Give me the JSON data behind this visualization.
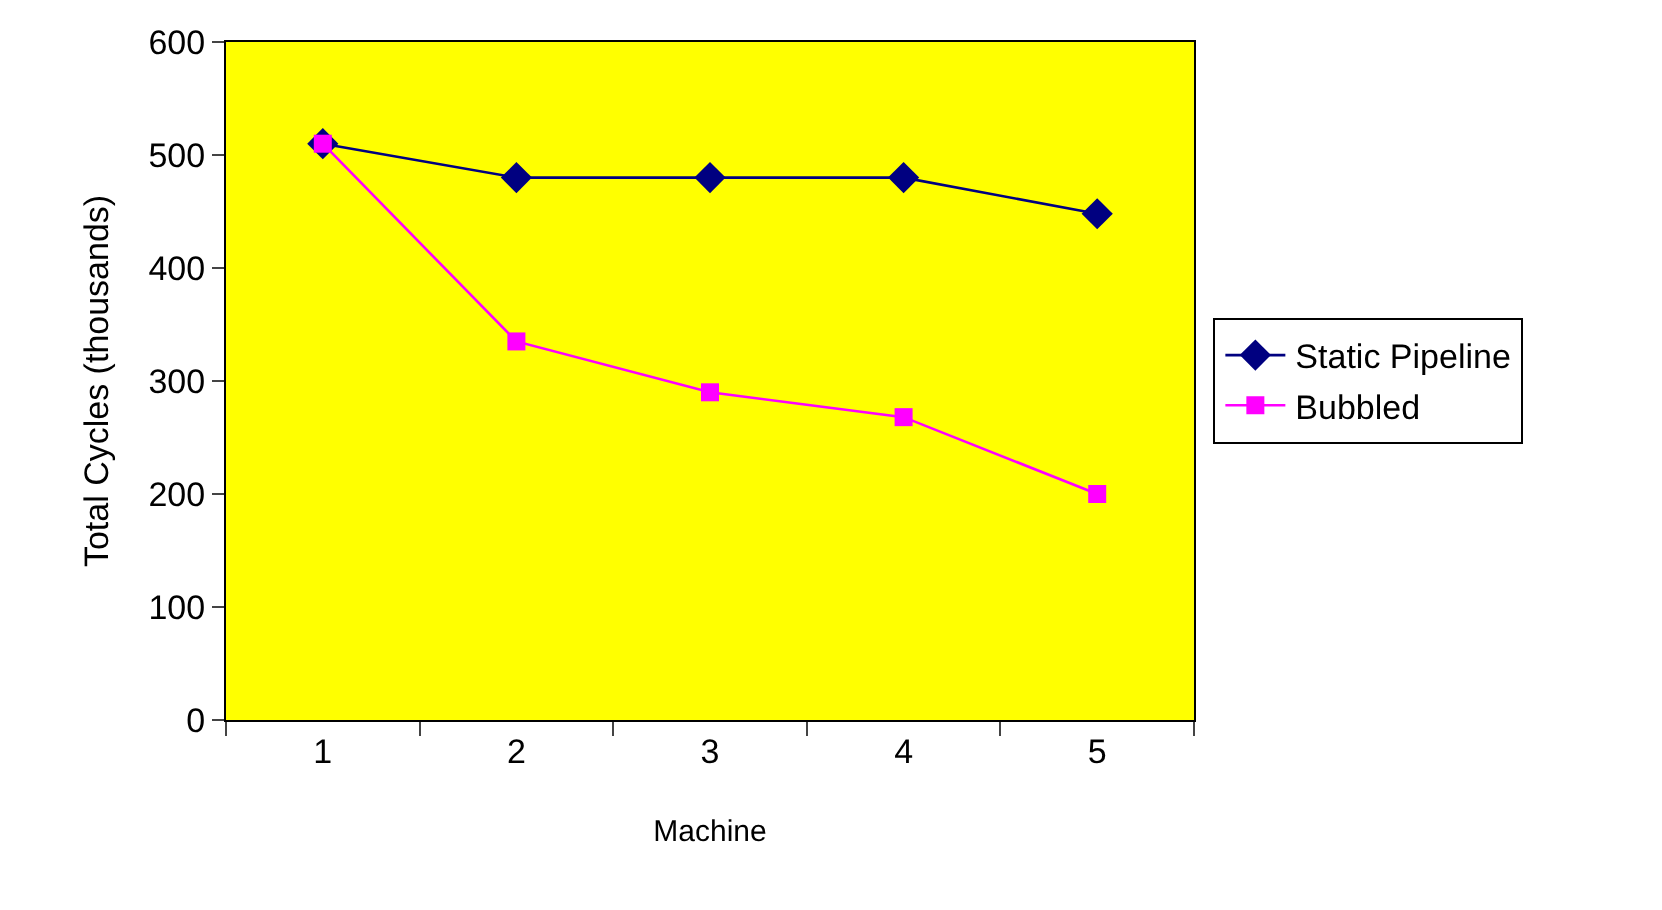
{
  "chart_data": {
    "type": "line",
    "xlabel": "Machine",
    "ylabel": "Total Cycles (thousands)",
    "categories": [
      "1",
      "2",
      "3",
      "4",
      "5"
    ],
    "series": [
      {
        "name": "Static Pipeline",
        "color": "#000080",
        "marker": "diamond",
        "values": [
          510,
          480,
          480,
          480,
          448
        ]
      },
      {
        "name": "Bubbled",
        "color": "#ff00ff",
        "marker": "square",
        "values": [
          510,
          335,
          290,
          268,
          200
        ]
      }
    ],
    "ylim": [
      0,
      600
    ],
    "yticks": [
      0,
      100,
      200,
      300,
      400,
      500,
      600
    ],
    "legend": "right",
    "grid": false
  }
}
